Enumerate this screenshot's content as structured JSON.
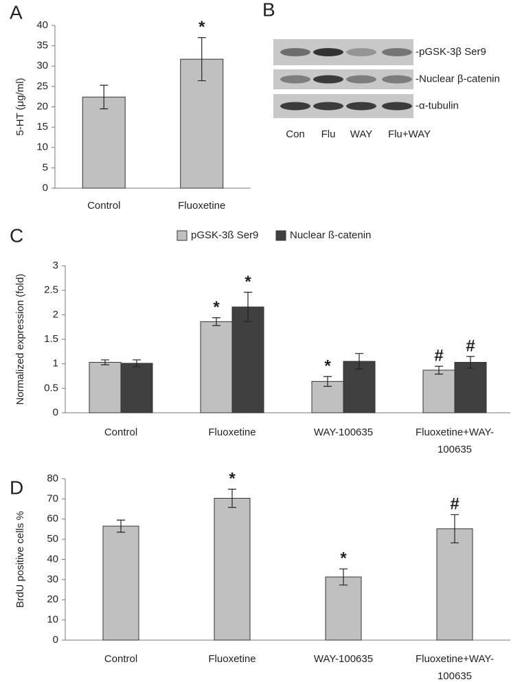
{
  "chart_data": [
    {
      "type": "bar",
      "panel_label": "A",
      "y_label": "5-HT (μg/ml)",
      "categories": [
        "Control",
        "Fluoxetine"
      ],
      "values": [
        22.4,
        31.7
      ],
      "errors": [
        2.9,
        5.3
      ],
      "markers": [
        null,
        "*"
      ],
      "color": "#c0c0c0",
      "ylim": [
        0,
        40
      ],
      "yticks": [
        0,
        5,
        10,
        15,
        20,
        25,
        30,
        35,
        40
      ]
    },
    {
      "type": "grouped_bar",
      "panel_label": "C",
      "y_label": "Normalized expression (fold)",
      "categories": [
        "Control",
        "Fluoxetine",
        "WAY-100635",
        "Fluoxetine+WAY-100635"
      ],
      "series": [
        {
          "name": "pGSK-3ß Ser9",
          "color": "#c0c0c0",
          "values": [
            1.03,
            1.86,
            0.64,
            0.87
          ],
          "errors": [
            0.05,
            0.08,
            0.1,
            0.08
          ],
          "markers": [
            null,
            "*",
            "*",
            "#"
          ]
        },
        {
          "name": "Nuclear ß-catenin",
          "color": "#404040",
          "values": [
            1.01,
            2.16,
            1.05,
            1.03
          ],
          "errors": [
            0.07,
            0.3,
            0.16,
            0.12
          ],
          "markers": [
            null,
            "*",
            null,
            "#"
          ]
        }
      ],
      "ylim": [
        0,
        3
      ],
      "yticks": [
        0,
        0.5,
        1,
        1.5,
        2,
        2.5,
        3
      ]
    },
    {
      "type": "bar",
      "panel_label": "D",
      "y_label": "BrdU positive cells %",
      "categories": [
        "Control",
        "Fluoxetine",
        "WAY-100635",
        "Fluoxetine+WAY-100635"
      ],
      "values": [
        56.5,
        70.3,
        31.3,
        55.2
      ],
      "errors": [
        3,
        4.5,
        4,
        7
      ],
      "markers": [
        null,
        "*",
        "*",
        "#"
      ],
      "color": "#c0c0c0",
      "ylim": [
        0,
        80
      ],
      "yticks": [
        0,
        10,
        20,
        30,
        40,
        50,
        60,
        70,
        80
      ]
    }
  ],
  "blot": {
    "panel_label": "B",
    "rows": [
      "-pGSK-3β Ser9",
      "-Nuclear β-catenin",
      "-α-tubulin"
    ],
    "lanes": [
      "Con",
      "Flu",
      "WAY",
      "Flu+WAY"
    ]
  }
}
